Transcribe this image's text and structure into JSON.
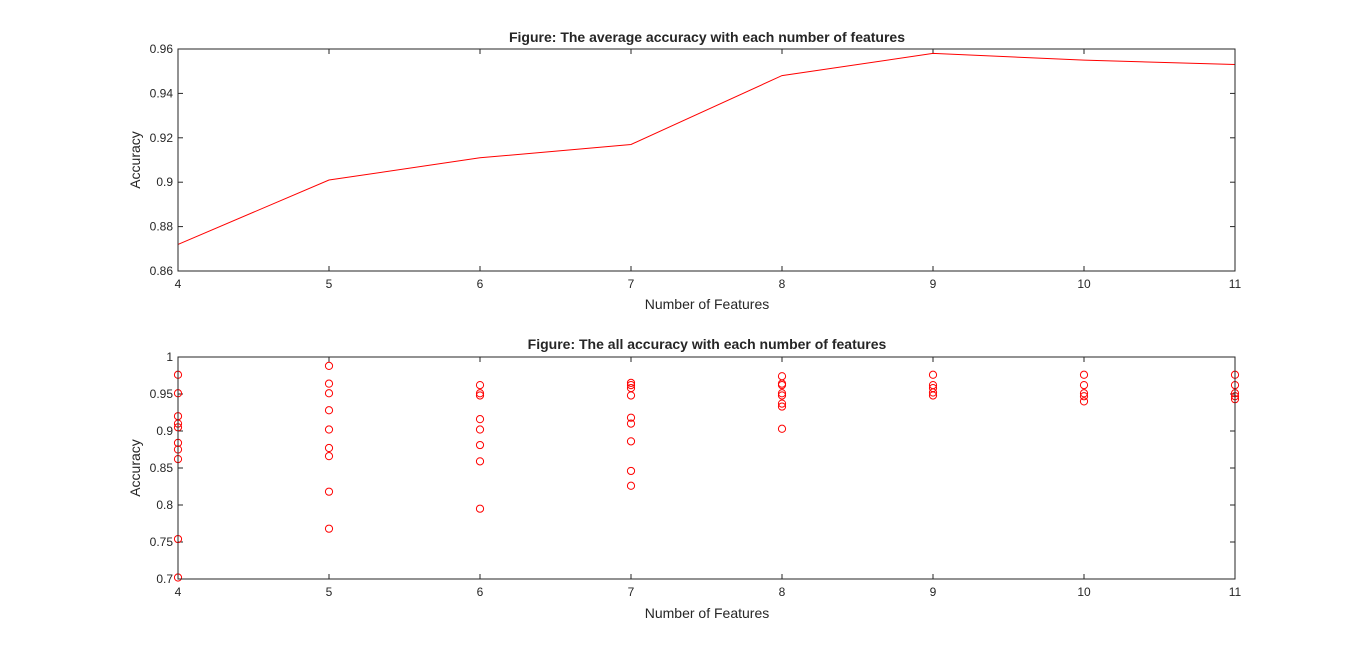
{
  "chart_data": [
    {
      "type": "line",
      "title": "Figure: The average accuracy with each number of features",
      "xlabel": "Number of Features",
      "ylabel": "Accuracy",
      "xlim": [
        4,
        11
      ],
      "ylim": [
        0.86,
        0.96
      ],
      "xticks": [
        "4",
        "5",
        "6",
        "7",
        "8",
        "9",
        "10",
        "11"
      ],
      "yticks": [
        "0.86",
        "0.88",
        "0.9",
        "0.92",
        "0.94",
        "0.96"
      ],
      "grid": false,
      "color": "#ff0000",
      "series": [
        {
          "x": [
            4,
            5,
            6,
            7,
            8,
            9,
            10,
            11
          ],
          "values": [
            0.872,
            0.901,
            0.911,
            0.917,
            0.948,
            0.958,
            0.955,
            0.953
          ]
        }
      ]
    },
    {
      "type": "scatter",
      "title": "Figure: The all accuracy with each number of features",
      "xlabel": "Number of Features",
      "ylabel": "Accuracy",
      "xlim": [
        4,
        11
      ],
      "ylim": [
        0.7,
        1.0
      ],
      "xticks": [
        "4",
        "5",
        "6",
        "7",
        "8",
        "9",
        "10",
        "11"
      ],
      "yticks": [
        "0.7",
        "0.75",
        "0.8",
        "0.85",
        "0.9",
        "0.95",
        "1"
      ],
      "grid": false,
      "color": "#ff0000",
      "marker": "circle",
      "series": [
        {
          "points": [
            [
              4,
              0.976
            ],
            [
              4,
              0.951
            ],
            [
              4,
              0.92
            ],
            [
              4,
              0.91
            ],
            [
              4,
              0.905
            ],
            [
              4,
              0.884
            ],
            [
              4,
              0.875
            ],
            [
              4,
              0.862
            ],
            [
              4,
              0.754
            ],
            [
              4,
              0.702
            ],
            [
              5,
              0.988
            ],
            [
              5,
              0.964
            ],
            [
              5,
              0.951
            ],
            [
              5,
              0.928
            ],
            [
              5,
              0.902
            ],
            [
              5,
              0.877
            ],
            [
              5,
              0.866
            ],
            [
              5,
              0.818
            ],
            [
              5,
              0.768
            ],
            [
              6,
              0.962
            ],
            [
              6,
              0.951
            ],
            [
              6,
              0.948
            ],
            [
              6,
              0.916
            ],
            [
              6,
              0.902
            ],
            [
              6,
              0.881
            ],
            [
              6,
              0.859
            ],
            [
              6,
              0.795
            ],
            [
              7,
              0.965
            ],
            [
              7,
              0.962
            ],
            [
              7,
              0.958
            ],
            [
              7,
              0.948
            ],
            [
              7,
              0.918
            ],
            [
              7,
              0.91
            ],
            [
              7,
              0.886
            ],
            [
              7,
              0.846
            ],
            [
              7,
              0.826
            ],
            [
              8,
              0.974
            ],
            [
              8,
              0.964
            ],
            [
              8,
              0.962
            ],
            [
              8,
              0.951
            ],
            [
              8,
              0.948
            ],
            [
              8,
              0.937
            ],
            [
              8,
              0.933
            ],
            [
              8,
              0.903
            ],
            [
              9,
              0.976
            ],
            [
              9,
              0.962
            ],
            [
              9,
              0.958
            ],
            [
              9,
              0.952
            ],
            [
              9,
              0.948
            ],
            [
              10,
              0.976
            ],
            [
              10,
              0.962
            ],
            [
              10,
              0.951
            ],
            [
              10,
              0.947
            ],
            [
              10,
              0.94
            ],
            [
              11,
              0.976
            ],
            [
              11,
              0.962
            ],
            [
              11,
              0.951
            ],
            [
              11,
              0.947
            ],
            [
              11,
              0.943
            ]
          ]
        }
      ]
    }
  ]
}
